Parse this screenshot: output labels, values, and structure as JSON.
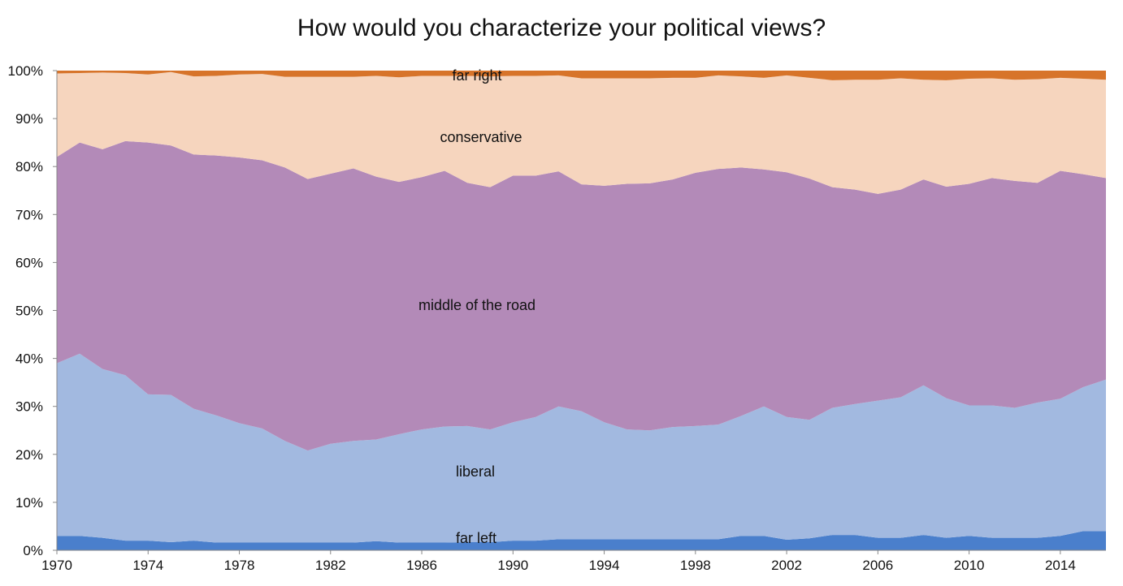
{
  "title": "How would you characterize your political views?",
  "colors": {
    "far_left": "#4a7fcc",
    "liberal": "#a2b9e0",
    "middle": "#b38ab8",
    "conservative": "#f6d5be",
    "far_right": "#d7742a",
    "axis": "#888888"
  },
  "chart_data": {
    "type": "area",
    "stacked": true,
    "normalized_percent": true,
    "title": "How would you characterize your political views?",
    "xlabel": "",
    "ylabel": "",
    "x": [
      1970,
      1971,
      1972,
      1973,
      1974,
      1975,
      1976,
      1977,
      1978,
      1979,
      1980,
      1981,
      1982,
      1983,
      1984,
      1985,
      1986,
      1987,
      1988,
      1989,
      1990,
      1991,
      1992,
      1993,
      1994,
      1995,
      1996,
      1997,
      1998,
      1999,
      2000,
      2001,
      2002,
      2003,
      2004,
      2005,
      2006,
      2007,
      2008,
      2009,
      2010,
      2011,
      2012,
      2013,
      2014,
      2015,
      2016
    ],
    "xlim": [
      1970,
      2016
    ],
    "ylim": [
      0,
      100
    ],
    "x_ticks": [
      "1970",
      "1974",
      "1978",
      "1982",
      "1986",
      "1990",
      "1994",
      "1998",
      "2002",
      "2006",
      "2010",
      "2014"
    ],
    "y_ticks": [
      "0%",
      "10%",
      "20%",
      "30%",
      "40%",
      "50%",
      "60%",
      "70%",
      "80%",
      "90%",
      "100%"
    ],
    "series": [
      {
        "name": "far left",
        "values": [
          3.0,
          3.0,
          2.6,
          2.0,
          2.0,
          1.7,
          2.0,
          1.6,
          1.6,
          1.6,
          1.6,
          1.6,
          1.6,
          1.6,
          1.9,
          1.6,
          1.6,
          1.6,
          1.7,
          1.7,
          2.0,
          2.0,
          2.3,
          2.3,
          2.3,
          2.3,
          2.3,
          2.3,
          2.3,
          2.3,
          3.0,
          3.0,
          2.2,
          2.5,
          3.2,
          3.2,
          2.6,
          2.6,
          3.2,
          2.6,
          3.0,
          2.6,
          2.6,
          2.6,
          3.0,
          4.0,
          4.0
        ]
      },
      {
        "name": "liberal",
        "values": [
          36.0,
          38.0,
          35.2,
          34.5,
          30.5,
          30.7,
          27.5,
          26.5,
          24.9,
          23.8,
          21.2,
          19.2,
          20.6,
          21.2,
          21.2,
          22.6,
          23.6,
          24.2,
          24.2,
          23.5,
          24.7,
          25.8,
          27.7,
          26.7,
          24.4,
          22.9,
          22.7,
          23.4,
          23.6,
          23.9,
          25.0,
          27.0,
          25.6,
          24.7,
          26.5,
          27.3,
          28.6,
          29.3,
          31.2,
          29.1,
          27.2,
          27.6,
          27.1,
          28.2,
          28.6,
          30.0,
          31.6
        ]
      },
      {
        "name": "middle of the road",
        "values": [
          43.0,
          44.0,
          45.8,
          48.8,
          52.5,
          52.0,
          53.0,
          54.2,
          55.4,
          55.9,
          57.0,
          56.6,
          56.3,
          56.8,
          54.8,
          52.6,
          52.6,
          53.3,
          50.7,
          50.5,
          51.4,
          50.3,
          49.0,
          47.3,
          49.3,
          51.2,
          51.5,
          51.6,
          52.8,
          53.3,
          51.8,
          49.4,
          51.0,
          50.3,
          46.0,
          44.7,
          43.1,
          43.3,
          42.9,
          44.1,
          46.2,
          47.4,
          47.3,
          45.8,
          47.5,
          44.4,
          42.0
        ]
      },
      {
        "name": "conservative",
        "values": [
          17.4,
          14.5,
          16.0,
          14.2,
          14.2,
          15.3,
          16.3,
          16.6,
          17.3,
          18.0,
          18.9,
          21.3,
          20.2,
          19.1,
          21.0,
          21.8,
          21.1,
          19.8,
          22.3,
          23.1,
          20.8,
          20.8,
          20.0,
          22.1,
          22.4,
          22.0,
          21.9,
          21.2,
          19.8,
          19.5,
          19.0,
          19.1,
          20.2,
          21.0,
          22.3,
          22.9,
          23.8,
          23.2,
          20.8,
          22.2,
          21.9,
          20.8,
          21.1,
          21.6,
          19.4,
          19.9,
          20.5
        ]
      },
      {
        "name": "far right",
        "values": [
          0.6,
          0.5,
          0.4,
          0.5,
          0.8,
          0.3,
          1.2,
          1.1,
          0.8,
          0.7,
          1.3,
          1.3,
          1.3,
          1.3,
          1.1,
          1.4,
          1.1,
          1.1,
          1.1,
          1.2,
          1.1,
          1.1,
          1.0,
          1.6,
          1.6,
          1.6,
          1.6,
          1.5,
          1.5,
          1.0,
          1.2,
          1.5,
          1.0,
          1.5,
          2.0,
          1.9,
          1.9,
          1.6,
          1.9,
          2.0,
          1.7,
          1.6,
          1.9,
          1.8,
          1.5,
          1.7,
          1.9
        ]
      }
    ],
    "annotations": [
      "far right",
      "conservative",
      "middle of the road",
      "liberal",
      "far left"
    ],
    "grid": false,
    "legend": "none"
  }
}
